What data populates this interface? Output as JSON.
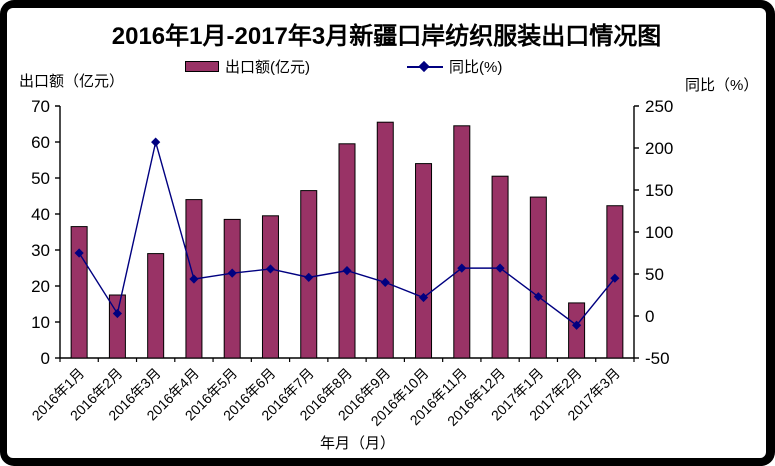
{
  "title": "2016年1月-2017年3月新疆口岸纺织服装出口情况图",
  "legend": {
    "items": [
      {
        "label": "出口额(亿元)",
        "type": "bar"
      },
      {
        "label": "同比(%)",
        "type": "line"
      }
    ]
  },
  "axes": {
    "left_label": "出口额（亿元）",
    "right_label": "同比（%）",
    "x_label": "年月（月）"
  },
  "colors": {
    "bar_fill": "#993366",
    "bar_stroke": "#000000",
    "line": "#000080",
    "marker": "#000080",
    "axis": "#000000",
    "text": "#000000",
    "frame": "#000000"
  },
  "chart_data": {
    "type": "bar",
    "title": "2016年1月-2017年3月新疆口岸纺织服装出口情况图",
    "categories": [
      "2016年1月",
      "2016年2月",
      "2016年3月",
      "2016年4月",
      "2016年5月",
      "2016年6月",
      "2016年7月",
      "2016年8月",
      "2016年9月",
      "2016年10月",
      "2016年11月",
      "2016年12月",
      "2017年1月",
      "2017年2月",
      "2017年3月"
    ],
    "series": [
      {
        "name": "出口额(亿元)",
        "type": "bar",
        "axis": "left",
        "values": [
          36.5,
          17.5,
          29,
          44,
          38.5,
          39.5,
          46.5,
          59.5,
          65.5,
          54,
          64.5,
          50.5,
          44.7,
          15.3,
          42.3
        ]
      },
      {
        "name": "同比(%)",
        "type": "line",
        "axis": "right",
        "values": [
          75,
          3,
          207,
          44,
          51,
          56,
          46,
          54,
          40,
          22,
          57,
          57,
          23,
          -11,
          45
        ]
      }
    ],
    "xlabel": "年月（月）",
    "ylabel_left": "出口额（亿元）",
    "ylabel_right": "同比（%）",
    "ylim_left": [
      0,
      70
    ],
    "yticks_left": [
      0,
      10,
      20,
      30,
      40,
      50,
      60,
      70
    ],
    "ylim_right": [
      -50,
      250
    ],
    "yticks_right": [
      -50,
      0,
      50,
      100,
      150,
      200,
      250
    ],
    "grid": false,
    "legend_position": "top"
  }
}
